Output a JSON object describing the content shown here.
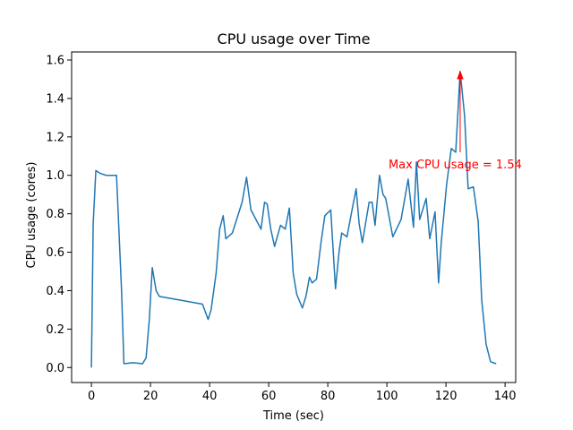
{
  "chart_data": {
    "type": "line",
    "title": "CPU usage over Time",
    "x_label": "Time (sec)",
    "y_label": "CPU usage (cores)",
    "x": [
      0,
      0.6,
      1.5,
      3,
      5,
      8.5,
      10.2,
      11,
      14,
      17.3,
      18.5,
      19.6,
      20.6,
      21.9,
      23,
      37.6,
      39.5,
      40.5,
      42.2,
      43.4,
      44.6,
      45.5,
      47.7,
      51,
      52.5,
      54,
      57.4,
      58.6,
      59.5,
      60.7,
      62,
      64,
      65.6,
      67,
      68.3,
      69.5,
      71.4,
      72.6,
      73.8,
      74.7,
      76.2,
      77.7,
      79,
      81,
      82.6,
      83.8,
      84.7,
      86.5,
      88.2,
      89.6,
      90.6,
      91.7,
      93,
      94,
      95,
      96,
      97.5,
      98.7,
      99.6,
      102,
      104.8,
      107.2,
      109,
      110,
      111.1,
      113.3,
      114.5,
      116.3,
      117.5,
      118.4,
      120.2,
      121.8,
      123.3,
      124.8,
      126.3,
      127.5,
      129.3,
      130.9,
      132.1,
      133.6,
      135.1,
      137
    ],
    "series": [
      {
        "name": "CPU usage",
        "color": "#1f77b4",
        "values": [
          0.0,
          0.75,
          1.025,
          1.01,
          1.0,
          1.0,
          0.4,
          0.02,
          0.025,
          0.02,
          0.05,
          0.25,
          0.52,
          0.4,
          0.37,
          0.33,
          0.25,
          0.3,
          0.49,
          0.72,
          0.79,
          0.67,
          0.7,
          0.86,
          0.99,
          0.82,
          0.72,
          0.86,
          0.85,
          0.72,
          0.63,
          0.74,
          0.72,
          0.83,
          0.49,
          0.38,
          0.31,
          0.37,
          0.47,
          0.44,
          0.46,
          0.65,
          0.79,
          0.82,
          0.41,
          0.6,
          0.7,
          0.68,
          0.82,
          0.93,
          0.75,
          0.65,
          0.77,
          0.86,
          0.86,
          0.74,
          1.0,
          0.9,
          0.88,
          0.68,
          0.77,
          0.98,
          0.73,
          1.07,
          0.77,
          0.88,
          0.67,
          0.81,
          0.44,
          0.65,
          0.95,
          1.14,
          1.12,
          1.54,
          1.31,
          0.93,
          0.94,
          0.76,
          0.35,
          0.12,
          0.03,
          0.02
        ]
      }
    ],
    "xlim": [
      -6.7,
      143.6
    ],
    "ylim": [
      -0.078,
      1.642
    ],
    "xticks": [
      0,
      20,
      40,
      60,
      80,
      100,
      120,
      140
    ],
    "yticks": [
      {
        "value": 0,
        "label": "0.0"
      },
      0.2,
      0.4,
      0.6,
      0.8,
      {
        "value": 1,
        "label": "1.0"
      },
      1.2,
      1.4,
      1.6
    ],
    "annotation": {
      "text": "Max CPU usage = 1.54",
      "x": 124.8,
      "y": 1.54,
      "color": "#ff0000"
    }
  }
}
